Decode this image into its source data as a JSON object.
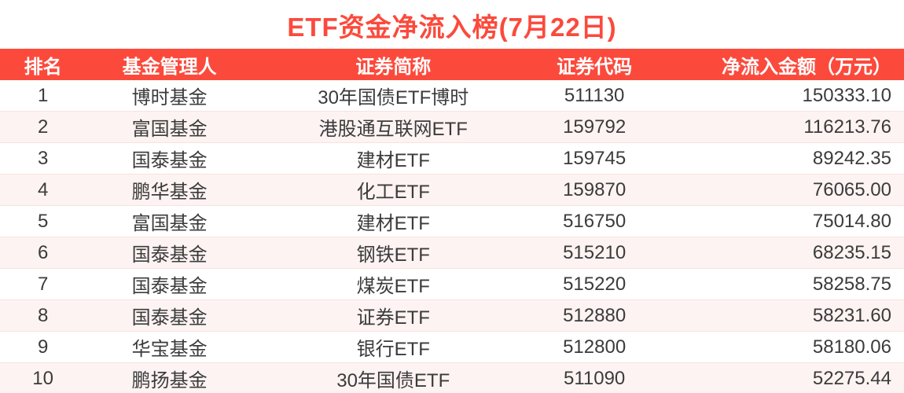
{
  "title": "ETF资金净流入榜(7月22日)",
  "colors": {
    "accent": "#fb4a3c",
    "header_bg": "#fb4a3c",
    "header_text": "#ffffff",
    "alt_row_bg": "#fdf3f2",
    "body_text": "#3b3b3b"
  },
  "chart_data": {
    "type": "table",
    "title": "ETF资金净流入榜(7月22日)",
    "columns": [
      "排名",
      "基金管理人",
      "证券简称",
      "证券代码",
      "净流入金额（万元）"
    ],
    "rows": [
      [
        "1",
        "博时基金",
        "30年国债ETF博时",
        "511130",
        "150333.10"
      ],
      [
        "2",
        "富国基金",
        "港股通互联网ETF",
        "159792",
        "116213.76"
      ],
      [
        "3",
        "国泰基金",
        "建材ETF",
        "159745",
        "89242.35"
      ],
      [
        "4",
        "鹏华基金",
        "化工ETF",
        "159870",
        "76065.00"
      ],
      [
        "5",
        "富国基金",
        "建材ETF",
        "516750",
        "75014.80"
      ],
      [
        "6",
        "国泰基金",
        "钢铁ETF",
        "515210",
        "68235.15"
      ],
      [
        "7",
        "国泰基金",
        "煤炭ETF",
        "515220",
        "58258.75"
      ],
      [
        "8",
        "国泰基金",
        "证券ETF",
        "512880",
        "58231.60"
      ],
      [
        "9",
        "华宝基金",
        "银行ETF",
        "512800",
        "58180.06"
      ],
      [
        "10",
        "鹏扬基金",
        "30年国债ETF",
        "511090",
        "52275.44"
      ]
    ],
    "column_alignments": [
      "center",
      "center",
      "center",
      "center",
      "right"
    ],
    "legend": null,
    "grid": false
  }
}
